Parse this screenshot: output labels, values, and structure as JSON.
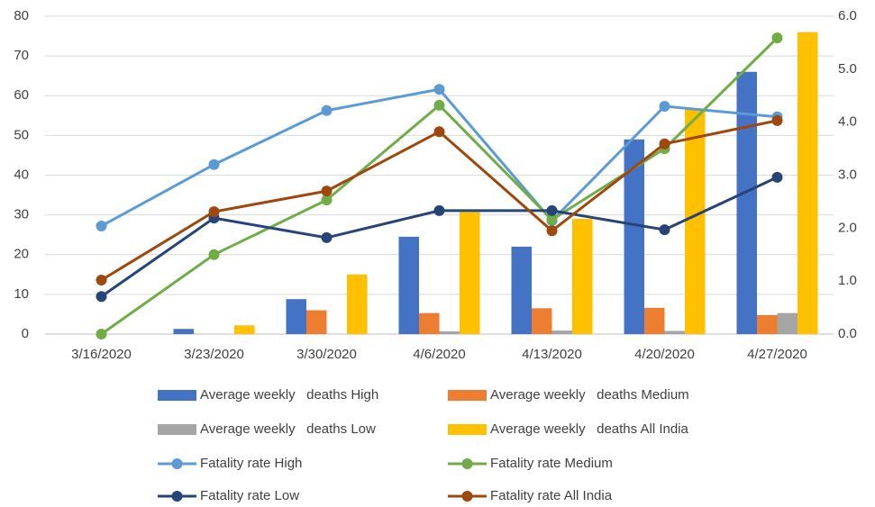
{
  "chart_data": {
    "type": "combo",
    "categories": [
      "3/16/2020",
      "3/23/2020",
      "3/30/2020",
      "4/6/2020",
      "4/13/2020",
      "4/20/2020",
      "4/27/2020"
    ],
    "ylim": [
      0,
      80
    ],
    "yticks": [
      0,
      10,
      20,
      30,
      40,
      50,
      60,
      70,
      80
    ],
    "y2lim": [
      0,
      6
    ],
    "y2ticks": [
      {
        "value": 0,
        "label": "0.0"
      },
      {
        "value": 1,
        "label": "1.0"
      },
      {
        "value": 2,
        "label": "2.0"
      },
      {
        "value": 3,
        "label": "3.0"
      },
      {
        "value": 4,
        "label": "4.0"
      },
      {
        "value": 5,
        "label": "5.0"
      },
      {
        "value": 6,
        "label": "6.0"
      }
    ],
    "grid": true,
    "series": [
      {
        "name": "Average weekly   deaths High",
        "type": "bar",
        "color": "#4472c4",
        "values": [
          0,
          1.3,
          8.8,
          24.5,
          22,
          49,
          66
        ]
      },
      {
        "name": "Average weekly   deaths Medium",
        "type": "bar",
        "color": "#ed7d31",
        "values": [
          0,
          0,
          6,
          5.3,
          6.5,
          6.6,
          4.8
        ]
      },
      {
        "name": "Average weekly   deaths Low",
        "type": "bar",
        "color": "#a5a5a5",
        "values": [
          0,
          0,
          0,
          0.7,
          0.9,
          0.8,
          5.3
        ]
      },
      {
        "name": "Average weekly   deaths All India",
        "type": "bar",
        "color": "#ffc000",
        "values": [
          0,
          2.2,
          15,
          30.7,
          29,
          56.8,
          76
        ]
      },
      {
        "name": "Fatality rate High",
        "type": "line",
        "axis": "y2",
        "color": "#5b9bd5",
        "values": [
          2.04,
          3.2,
          4.22,
          4.62,
          2.14,
          4.3,
          4.1
        ]
      },
      {
        "name": "Fatality rate Medium",
        "type": "line",
        "axis": "y2",
        "color": "#70ad47",
        "values": [
          0,
          1.5,
          2.53,
          4.32,
          2.16,
          3.5,
          5.59
        ]
      },
      {
        "name": "Fatality rate Low",
        "type": "line",
        "axis": "y2",
        "color": "#264478",
        "values": [
          0.71,
          2.19,
          1.82,
          2.33,
          2.33,
          1.97,
          2.96
        ]
      },
      {
        "name": "Fatality rate All India",
        "type": "line",
        "axis": "y2",
        "color": "#9e480e",
        "values": [
          1.02,
          2.31,
          2.7,
          3.82,
          1.95,
          3.59,
          4.03
        ]
      }
    ]
  }
}
